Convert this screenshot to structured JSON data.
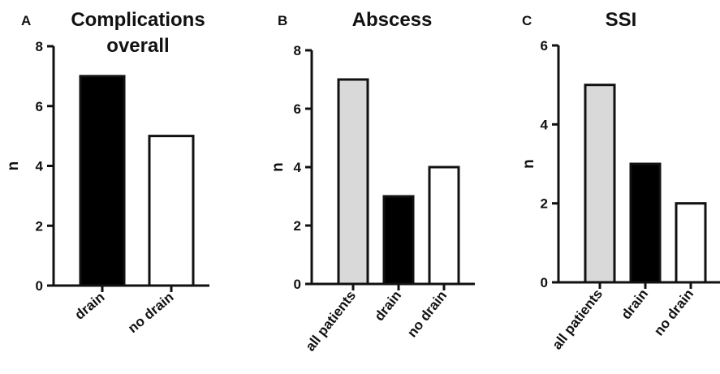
{
  "colors": {
    "drain": "#000000",
    "no_drain": "#ffffff",
    "all_patients": "#d9d9d9",
    "axis": "#111111"
  },
  "chart_data": [
    {
      "type": "bar",
      "panel": "A",
      "title": "Complications overall",
      "title_lines": [
        "Complications",
        "overall"
      ],
      "ylabel": "n",
      "ylim": [
        0,
        8
      ],
      "yticks": [
        "0",
        "2",
        "4",
        "6",
        "8"
      ],
      "categories": [
        "drain",
        "no drain"
      ],
      "values": [
        7,
        5
      ],
      "bar_colors": [
        "#000000",
        "#ffffff"
      ]
    },
    {
      "type": "bar",
      "panel": "B",
      "title": "Abscess",
      "title_lines": [
        "Abscess"
      ],
      "ylabel": "n",
      "ylim": [
        0,
        8
      ],
      "yticks": [
        "0",
        "2",
        "4",
        "6",
        "8"
      ],
      "categories": [
        "all patients",
        "drain",
        "no drain"
      ],
      "values": [
        7,
        3,
        4
      ],
      "bar_colors": [
        "#d9d9d9",
        "#000000",
        "#ffffff"
      ]
    },
    {
      "type": "bar",
      "panel": "C",
      "title": "SSI",
      "title_lines": [
        "SSI"
      ],
      "ylabel": "n",
      "ylim": [
        0,
        6
      ],
      "yticks": [
        "0",
        "2",
        "4",
        "6"
      ],
      "categories": [
        "all patients",
        "drain",
        "no drain"
      ],
      "values": [
        5,
        3,
        2
      ],
      "bar_colors": [
        "#d9d9d9",
        "#000000",
        "#ffffff"
      ]
    }
  ]
}
